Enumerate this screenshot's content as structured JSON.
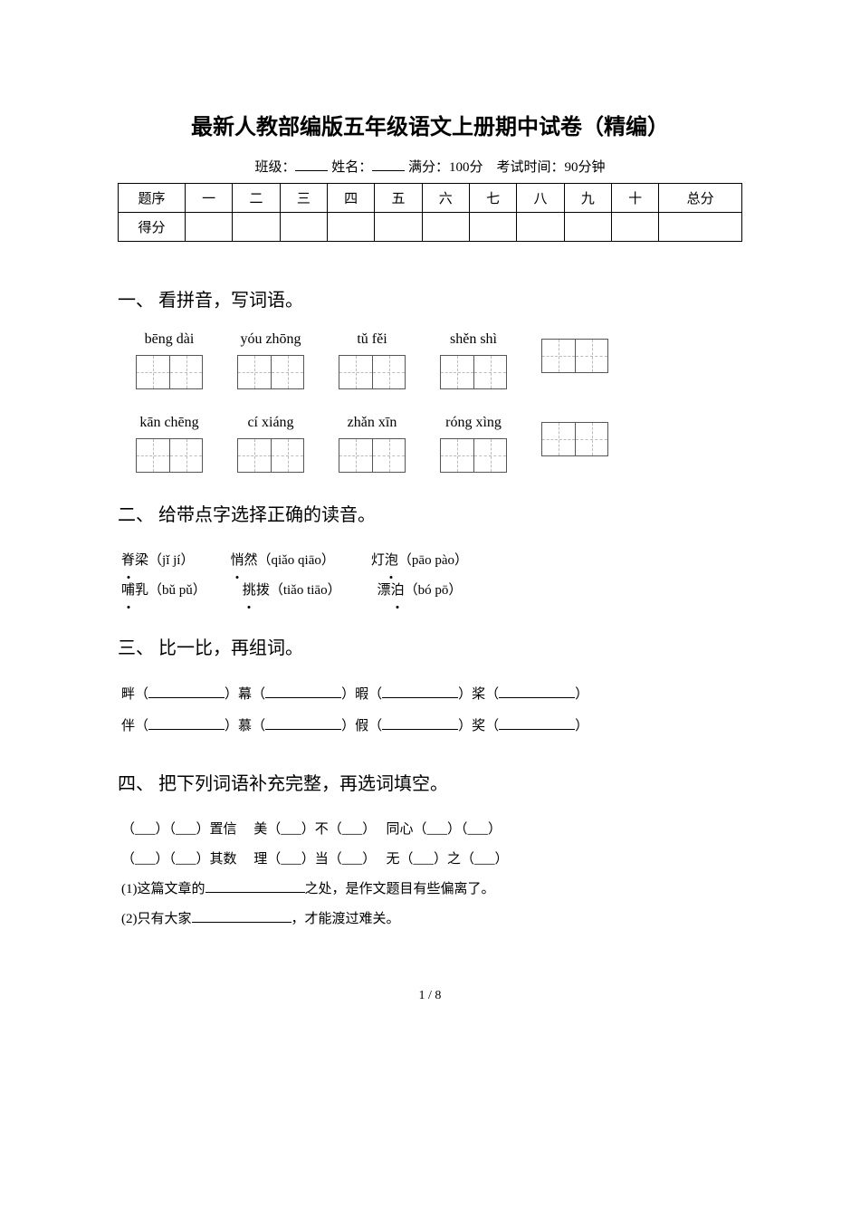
{
  "title": "最新人教部编版五年级语文上册期中试卷（精编）",
  "meta": {
    "class_label": "班级：",
    "name_label": "姓名：",
    "full_label": "满分：",
    "full_value": "100分",
    "time_label": "考试时间：",
    "time_value": "90分钟"
  },
  "score_table": {
    "headers": [
      "题序",
      "一",
      "二",
      "三",
      "四",
      "五",
      "六",
      "七",
      "八",
      "九",
      "十",
      "总分"
    ],
    "row_label": "得分"
  },
  "sections": {
    "s1": {
      "head": "一、 看拼音，写词语。"
    },
    "s2": {
      "head": "二、 给带点字选择正确的读音。"
    },
    "s3": {
      "head": "三、 比一比，再组词。"
    },
    "s4": {
      "head": "四、 把下列词语补充完整，再选词填空。"
    }
  },
  "pinyin_rows": [
    [
      "bēng dài",
      "yóu zhōng",
      "tǔ fěi",
      "shěn shì",
      ""
    ],
    [
      "kān chēng",
      "cí xiáng",
      "zhǎn xīn",
      "róng xìng",
      ""
    ]
  ],
  "pinyin_box_count": 2,
  "readings": [
    [
      {
        "dot": "脊",
        "rest": "梁",
        "py": "（jǐ jí）"
      },
      {
        "dot": "悄",
        "rest": "然",
        "py": "（qiǎo qiāo）"
      },
      {
        "rest": "灯",
        "dot": "泡",
        "py": "（pāo pào）"
      }
    ],
    [
      {
        "dot": "哺",
        "rest": "乳",
        "py": "（bǔ pǔ）"
      },
      {
        "dot": "挑",
        "rest": "拨",
        "py": "（tiǎo tiāo）"
      },
      {
        "rest": "漂",
        "dot": "泊",
        "py": "（bó pō）"
      }
    ]
  ],
  "compare": [
    [
      "畔",
      "幕",
      "暇",
      "桨"
    ],
    [
      "伴",
      "慕",
      "假",
      "奖"
    ]
  ],
  "fill": {
    "row1": "（___）（___）置信　 美（___）不（___）　 同心（___）（___）",
    "row2": "（___）（___）其数　 理（___）当（___）　 无（___）之（___）",
    "q1_pre": "(1)这篇文章的",
    "q1_post": "之处，是作文题目有些偏离了。",
    "q2_pre": "(2)只有大家",
    "q2_post": "，才能渡过难关。"
  },
  "page": "1 / 8",
  "colors": {
    "text": "#000000",
    "bg": "#ffffff",
    "box_border": "#555555",
    "dash": "#bbbbbb"
  }
}
